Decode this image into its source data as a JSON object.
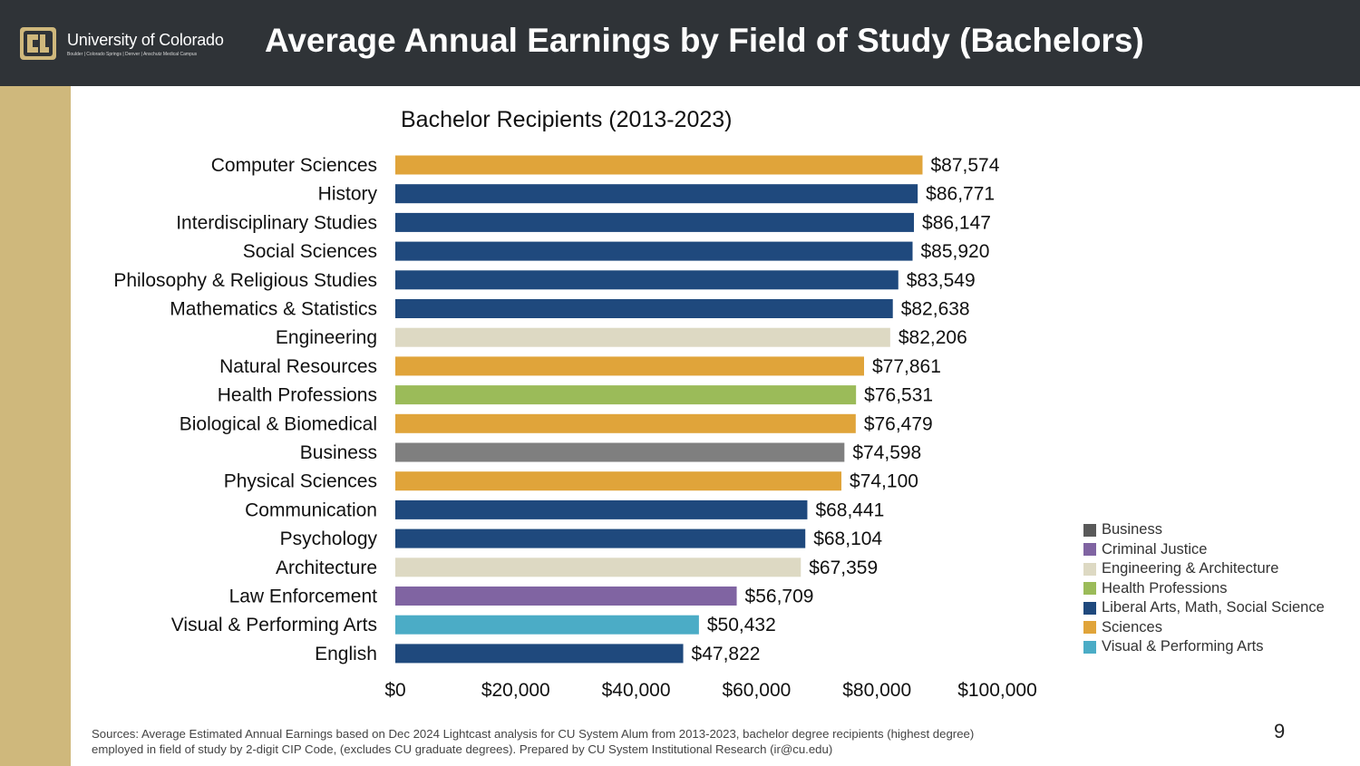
{
  "header": {
    "university": "University of Colorado",
    "campuses": "Boulder | Colorado Springs | Denver | Anschutz Medical Campus",
    "title": "Average Annual Earnings by Field of Study (Bachelors)",
    "logo_icon": "cu-logo-icon"
  },
  "colors": {
    "header_bg": "#2f3337",
    "accent_gold": "#cfb87c",
    "Business": "#7f7f7f",
    "Criminal Justice": "#8064a2",
    "Engineering & Architecture": "#ddd9c3",
    "Health Professions": "#9bbb59",
    "Liberal Arts, Math, Social Science": "#1f497d",
    "Sciences": "#e0a43a",
    "Visual & Performing Arts": "#4bacc6"
  },
  "chart_data": {
    "type": "bar",
    "orientation": "horizontal",
    "title": "Bachelor Recipients (2013-2023)",
    "xlabel": "",
    "ylabel": "",
    "xlim": [
      0,
      100000
    ],
    "x_ticks": [
      0,
      20000,
      40000,
      60000,
      80000,
      100000
    ],
    "x_tick_labels": [
      "$0",
      "$20,000",
      "$40,000",
      "$60,000",
      "$80,000",
      "$100,000"
    ],
    "grid": false,
    "legend_position": "bottom-right",
    "categories": [
      "Computer Sciences",
      "History",
      "Interdisciplinary Studies",
      "Social Sciences",
      "Philosophy & Religious Studies",
      "Mathematics & Statistics",
      "Engineering",
      "Natural Resources",
      "Health Professions",
      "Biological & Biomedical",
      "Business",
      "Physical Sciences",
      "Communication",
      "Psychology",
      "Architecture",
      "Law Enforcement",
      "Visual & Performing Arts",
      "English"
    ],
    "values": [
      87574,
      86771,
      86147,
      85920,
      83549,
      82638,
      82206,
      77861,
      76531,
      76479,
      74598,
      74100,
      68441,
      68104,
      67359,
      56709,
      50432,
      47822
    ],
    "value_labels": [
      "$87,574",
      "$86,771",
      "$86,147",
      "$85,920",
      "$83,549",
      "$82,638",
      "$82,206",
      "$77,861",
      "$76,531",
      "$76,479",
      "$74,598",
      "$74,100",
      "$68,441",
      "$68,104",
      "$67,359",
      "$56,709",
      "$50,432",
      "$47,822"
    ],
    "groups": [
      "Sciences",
      "Liberal Arts, Math, Social Science",
      "Liberal Arts, Math, Social Science",
      "Liberal Arts, Math, Social Science",
      "Liberal Arts, Math, Social Science",
      "Liberal Arts, Math, Social Science",
      "Engineering & Architecture",
      "Sciences",
      "Health Professions",
      "Sciences",
      "Business",
      "Sciences",
      "Liberal Arts, Math, Social Science",
      "Liberal Arts, Math, Social Science",
      "Engineering & Architecture",
      "Criminal Justice",
      "Visual & Performing Arts",
      "Liberal Arts, Math, Social Science"
    ],
    "legend": [
      "Business",
      "Criminal Justice",
      "Engineering & Architecture",
      "Health Professions",
      "Liberal Arts, Math, Social Science",
      "Sciences",
      "Visual & Performing Arts"
    ]
  },
  "footer": {
    "source": "Sources: Average Estimated Annual Earnings based on Dec 2024 Lightcast analysis for CU System Alum from 2013-2023, bachelor degree recipients (highest degree) employed in field of study by 2-digit CIP Code, (excludes CU graduate degrees). Prepared by CU System Institutional Research (ir@cu.edu)",
    "page_number": "9"
  }
}
